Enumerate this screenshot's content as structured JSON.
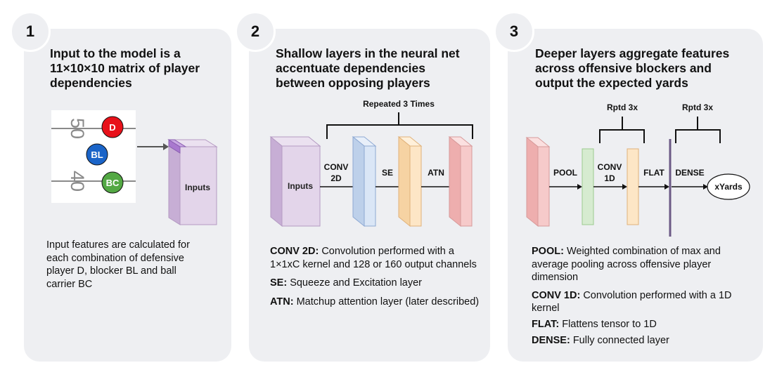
{
  "panels": [
    {
      "number": "1",
      "title": [
        "Input to the model is a",
        "11×10×10 matrix of player",
        "dependencies"
      ],
      "field": {
        "yard_top": "50",
        "yard_bottom": "40"
      },
      "players": {
        "defender": "D",
        "blocker": "BL",
        "carrier": "BC"
      },
      "box_label": "Inputs",
      "description": [
        "Input features are calculated for",
        "each combination of defensive",
        "player D, blocker BL and ball",
        "carrier BC"
      ]
    },
    {
      "number": "2",
      "title": [
        "Shallow layers in the neural net",
        "accentuate dependencies",
        "between opposing players"
      ],
      "repeat_label": "Repeated 3 Times",
      "input_label": "Inputs",
      "conv_label": [
        "CONV",
        "2D"
      ],
      "se_label": "SE",
      "atn_label": "ATN",
      "defs": [
        {
          "term": "CONV 2D:",
          "text": " Convolution performed with a 1×1xC kernel and 128 or 160 output channels"
        },
        {
          "term": "SE:",
          "text": " Squeeze and Excitation layer"
        },
        {
          "term": "ATN:",
          "text": " Matchup attention layer (later described)"
        }
      ]
    },
    {
      "number": "3",
      "title": [
        "Deeper layers aggregate features",
        "across offensive blockers and",
        "output the expected yards"
      ],
      "repeat_a": "Rptd 3x",
      "repeat_b": "Rptd 3x",
      "pool_label": "POOL",
      "conv_label": [
        "CONV",
        "1D"
      ],
      "flat_label": "FLAT",
      "dense_label": "DENSE",
      "output_label": "xYards",
      "defs": [
        {
          "term": "POOL:",
          "text": " Weighted combination of max and average pooling across offensive player dimension"
        },
        {
          "term": "CONV 1D:",
          "text": " Convolution performed with a 1D kernel"
        },
        {
          "term": "FLAT:",
          "text": " Flattens tensor to 1D"
        },
        {
          "term": "DENSE:",
          "text": " Fully connected layer"
        }
      ]
    }
  ],
  "colors": {
    "panel_bg": "#eeeff2",
    "defender": "#e8111a",
    "blocker": "#1a64c8",
    "carrier": "#53a844",
    "purple": "#e0d3e8",
    "blue": "#dae6f6",
    "orange": "#fde6c6",
    "red": "#f6caca",
    "green": "#d6ebd0"
  }
}
